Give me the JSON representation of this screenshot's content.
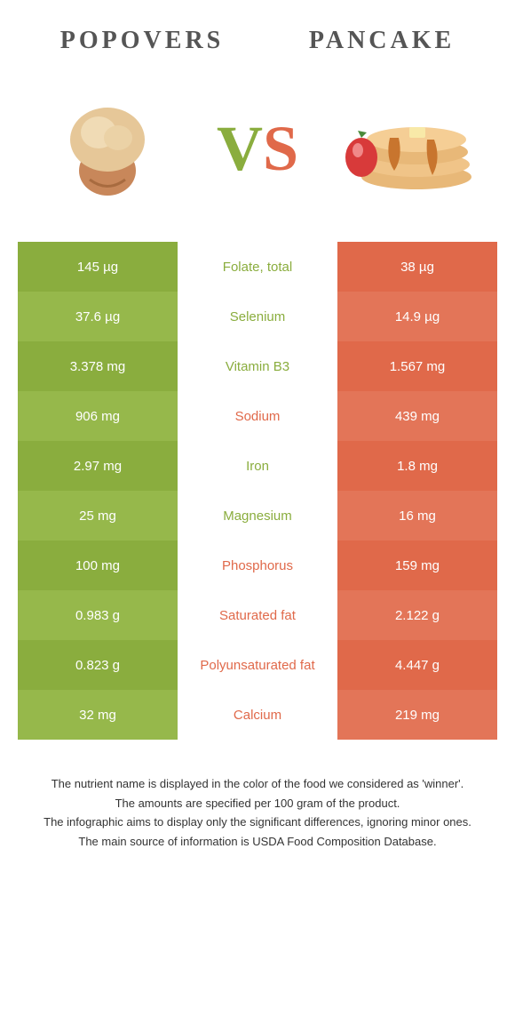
{
  "colors": {
    "left": "#8aad3e",
    "right": "#e0694a",
    "left_alt": "#96b84b",
    "right_alt": "#e37558",
    "text_dark": "#555555",
    "bg": "#ffffff"
  },
  "header": {
    "left_title": "Popovers",
    "right_title": "Pancake",
    "vs_v": "V",
    "vs_s": "S"
  },
  "table": {
    "rows": [
      {
        "left": "145 µg",
        "label": "Folate, total",
        "right": "38 µg",
        "winner": "left"
      },
      {
        "left": "37.6 µg",
        "label": "Selenium",
        "right": "14.9 µg",
        "winner": "left"
      },
      {
        "left": "3.378 mg",
        "label": "Vitamin B3",
        "right": "1.567 mg",
        "winner": "left"
      },
      {
        "left": "906 mg",
        "label": "Sodium",
        "right": "439 mg",
        "winner": "right"
      },
      {
        "left": "2.97 mg",
        "label": "Iron",
        "right": "1.8 mg",
        "winner": "left"
      },
      {
        "left": "25 mg",
        "label": "Magnesium",
        "right": "16 mg",
        "winner": "left"
      },
      {
        "left": "100 mg",
        "label": "Phosphorus",
        "right": "159 mg",
        "winner": "right"
      },
      {
        "left": "0.983 g",
        "label": "Saturated fat",
        "right": "2.122 g",
        "winner": "right"
      },
      {
        "left": "0.823 g",
        "label": "Polyunsaturated fat",
        "right": "4.447 g",
        "winner": "right"
      },
      {
        "left": "32 mg",
        "label": "Calcium",
        "right": "219 mg",
        "winner": "right"
      }
    ]
  },
  "footer": {
    "line1": "The nutrient name is displayed in the color of the food we considered as 'winner'.",
    "line2": "The amounts are specified per 100 gram of the product.",
    "line3": "The infographic aims to display only the significant differences, ignoring minor ones.",
    "line4": "The main source of information is USDA Food Composition Database."
  }
}
